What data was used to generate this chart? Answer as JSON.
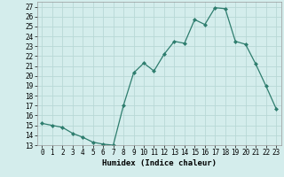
{
  "x": [
    0,
    1,
    2,
    3,
    4,
    5,
    6,
    7,
    8,
    9,
    10,
    11,
    12,
    13,
    14,
    15,
    16,
    17,
    18,
    19,
    20,
    21,
    22,
    23
  ],
  "y": [
    15.2,
    15.0,
    14.8,
    14.2,
    13.8,
    13.3,
    13.1,
    13.0,
    17.0,
    20.3,
    21.3,
    20.5,
    22.2,
    23.5,
    23.3,
    25.7,
    25.2,
    26.9,
    26.8,
    23.5,
    23.2,
    21.2,
    19.0,
    16.7
  ],
  "line_color": "#2e7d6e",
  "marker": "D",
  "marker_size": 2.0,
  "bg_color": "#d4edec",
  "grid_color": "#b8d8d6",
  "xlabel": "Humidex (Indice chaleur)",
  "ylim": [
    13,
    27.5
  ],
  "xlim": [
    -0.5,
    23.5
  ],
  "yticks": [
    13,
    14,
    15,
    16,
    17,
    18,
    19,
    20,
    21,
    22,
    23,
    24,
    25,
    26,
    27
  ],
  "xticks": [
    0,
    1,
    2,
    3,
    4,
    5,
    6,
    7,
    8,
    9,
    10,
    11,
    12,
    13,
    14,
    15,
    16,
    17,
    18,
    19,
    20,
    21,
    22,
    23
  ],
  "tick_fontsize": 5.5,
  "xlabel_fontsize": 6.5
}
